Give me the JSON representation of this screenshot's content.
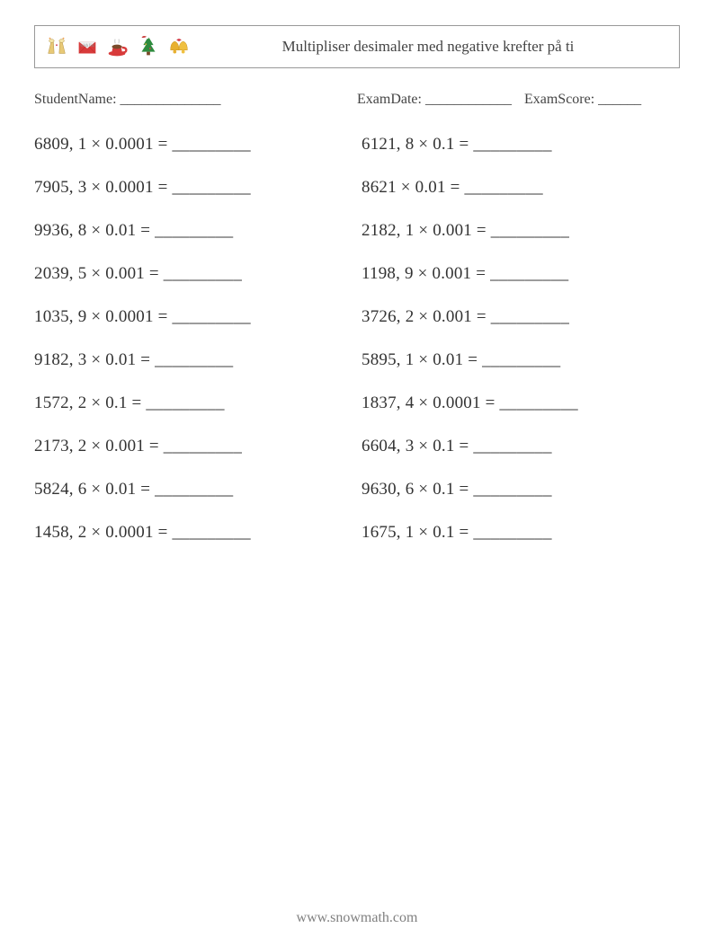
{
  "header": {
    "title": "Multipliser desimaler med negative krefter på ti",
    "icons": [
      "glasses-icon",
      "envelope-icon",
      "cup-icon",
      "tree-icon",
      "bells-icon"
    ]
  },
  "info": {
    "student_label": "StudentName: ______________",
    "date_label": "ExamDate: ____________",
    "score_label": "ExamScore: ______"
  },
  "problems": {
    "type": "worksheet-fill-blank",
    "text_color": "#333333",
    "fontsize": 19,
    "columns": 2,
    "rows": 10,
    "blank": "_________",
    "left": [
      {
        "a": "6809, 1",
        "b": "0.0001"
      },
      {
        "a": "7905, 3",
        "b": "0.0001"
      },
      {
        "a": "9936, 8",
        "b": "0.01"
      },
      {
        "a": "2039, 5",
        "b": "0.001"
      },
      {
        "a": "1035, 9",
        "b": "0.0001"
      },
      {
        "a": "9182, 3",
        "b": "0.01"
      },
      {
        "a": "1572, 2",
        "b": "0.1"
      },
      {
        "a": "2173, 2",
        "b": "0.001"
      },
      {
        "a": "5824, 6",
        "b": "0.01"
      },
      {
        "a": "1458, 2",
        "b": "0.0001"
      }
    ],
    "right": [
      {
        "a": "6121, 8",
        "b": "0.1"
      },
      {
        "a": "8621",
        "b": "0.01"
      },
      {
        "a": "2182, 1",
        "b": "0.001"
      },
      {
        "a": "1198, 9",
        "b": "0.001"
      },
      {
        "a": "3726, 2",
        "b": "0.001"
      },
      {
        "a": "5895, 1",
        "b": "0.01"
      },
      {
        "a": "1837, 4",
        "b": "0.0001"
      },
      {
        "a": "6604, 3",
        "b": "0.1"
      },
      {
        "a": "9630, 6",
        "b": "0.1"
      },
      {
        "a": "1675, 1",
        "b": "0.1"
      }
    ]
  },
  "footer": {
    "text": "www.snowmath.com",
    "color": "#808080"
  }
}
